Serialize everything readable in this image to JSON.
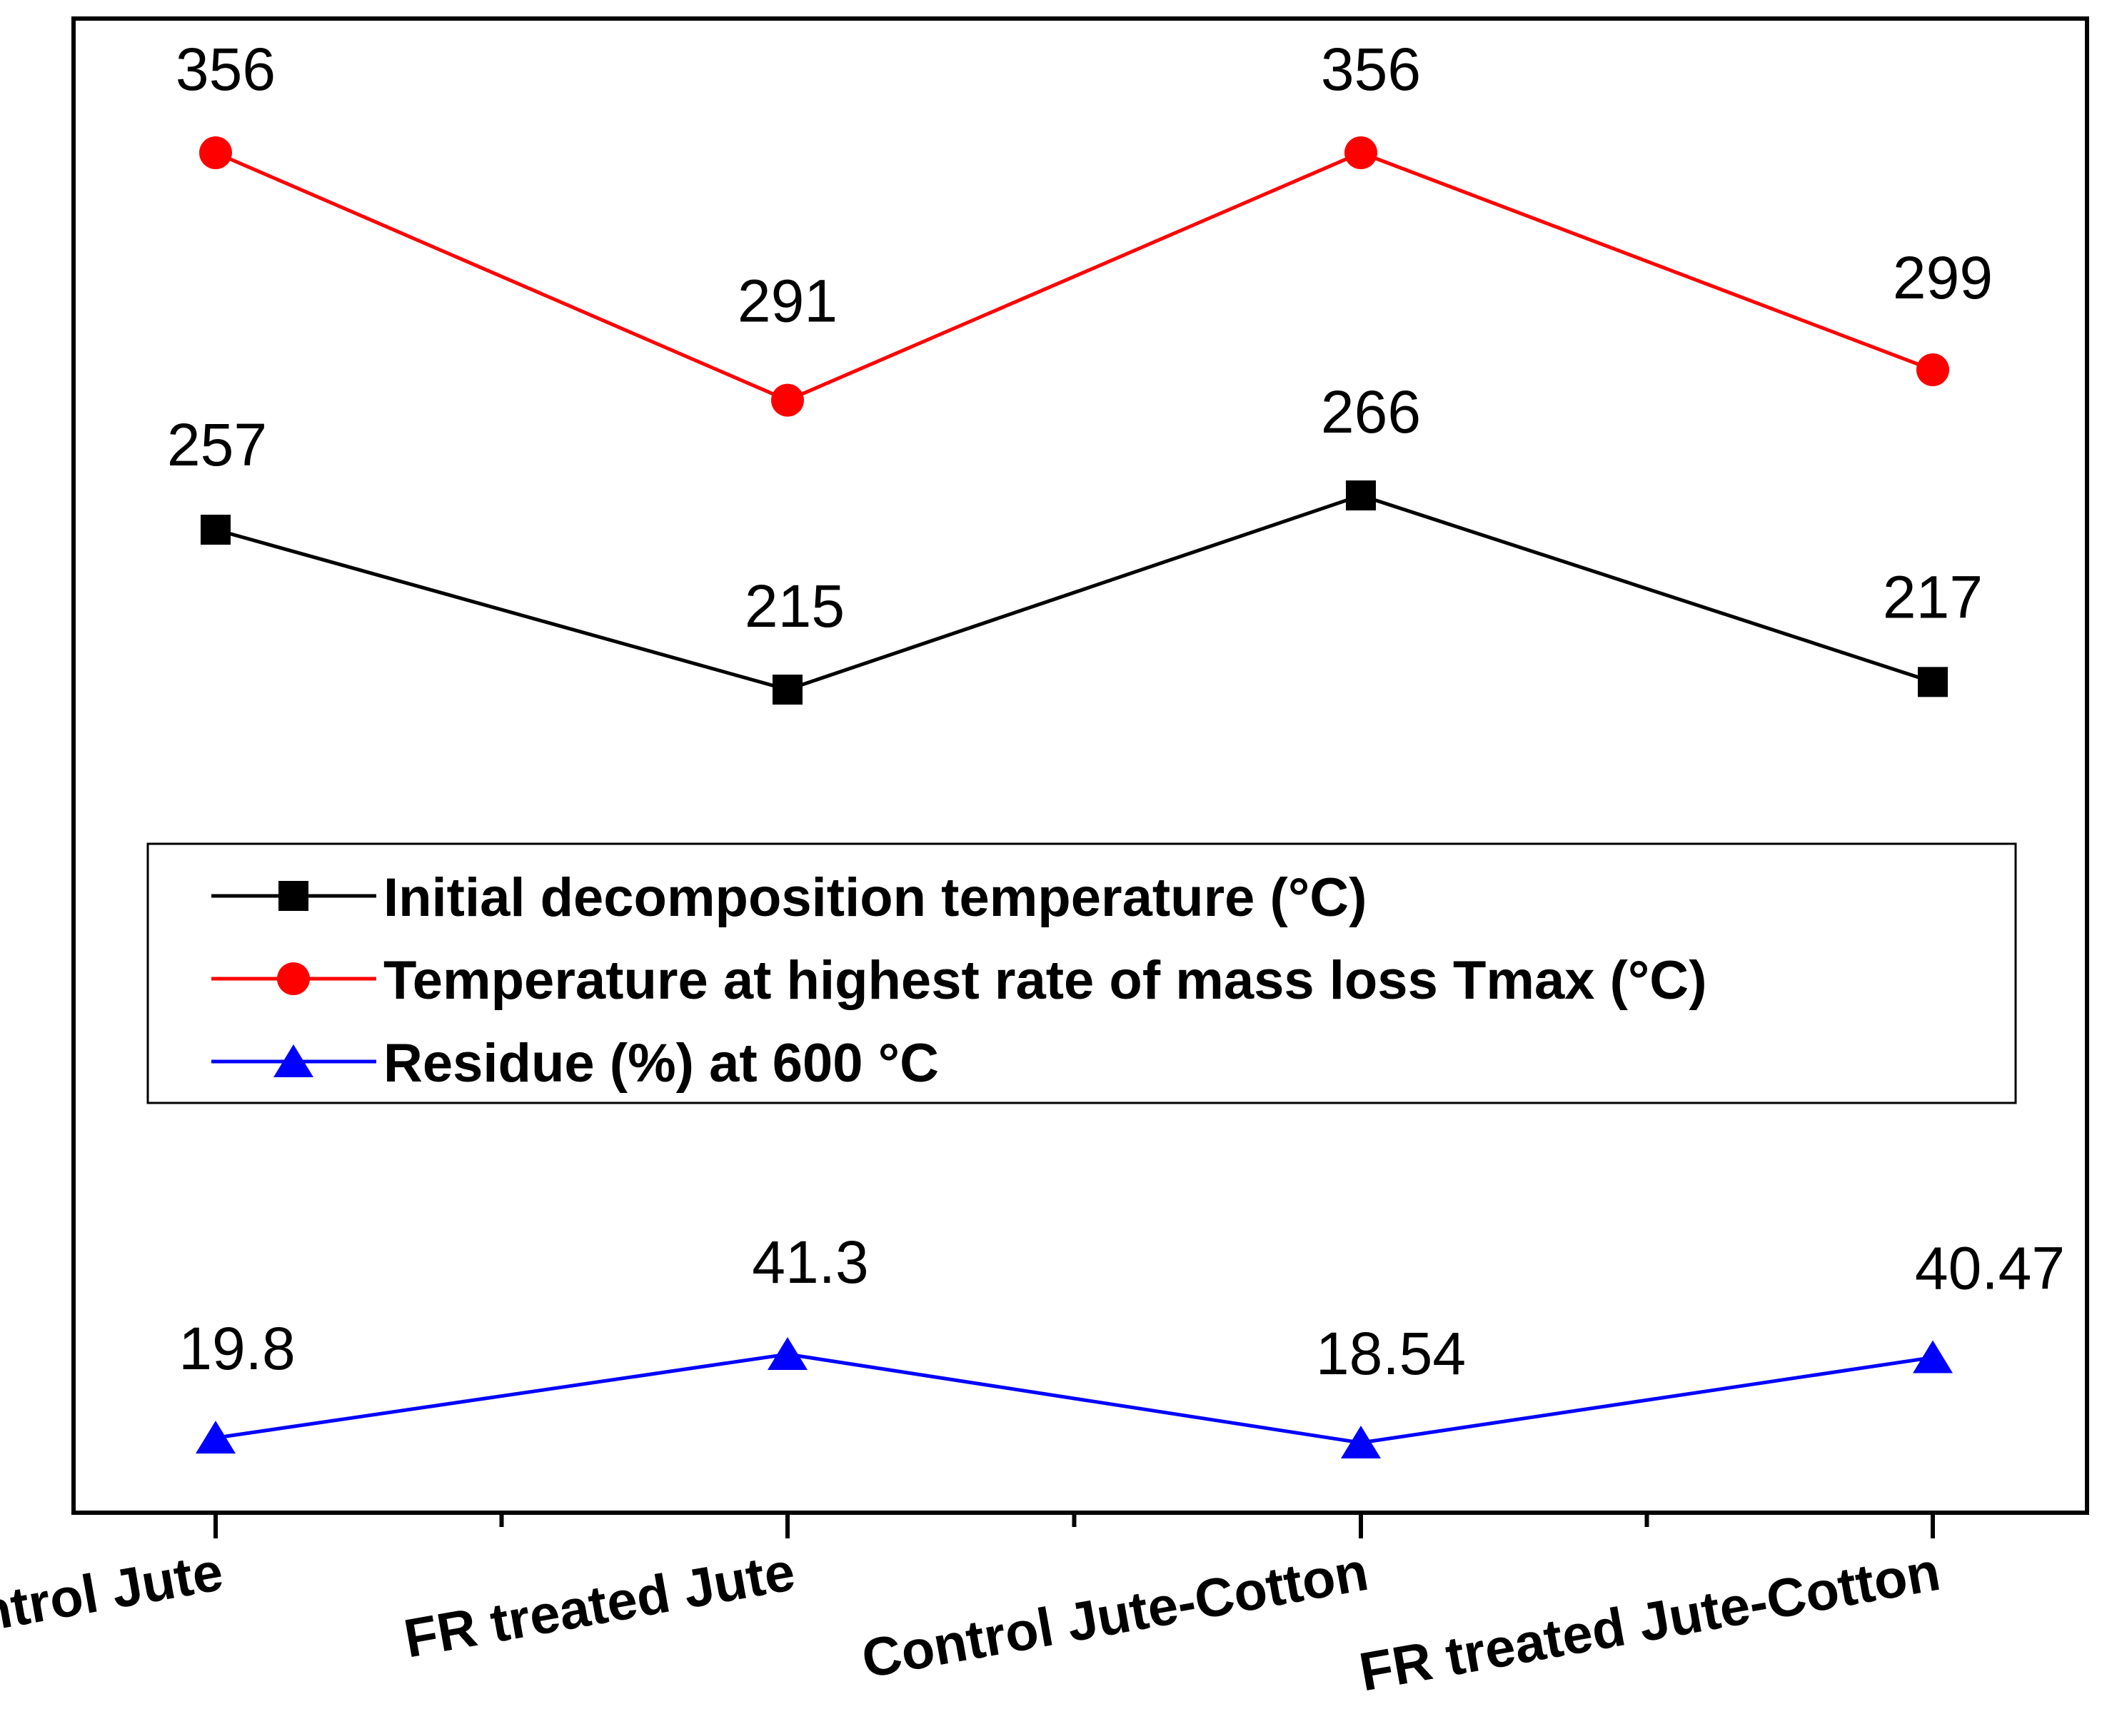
{
  "chart_data": {
    "type": "line",
    "title": "",
    "xlabel": "",
    "ylabel": "",
    "categories": [
      "Control Jute",
      "FR treated Jute",
      "Control Jute-Cotton",
      "FR treated Jute-Cotton"
    ],
    "series": [
      {
        "name": "Initial decomposition temperature (°C)",
        "marker": "square",
        "color": "#000000",
        "values": [
          257,
          215,
          266,
          217
        ],
        "labels": [
          "257",
          "215",
          "266",
          "217"
        ]
      },
      {
        "name": "Temperature at highest rate of mass loss Tmax (°C)",
        "marker": "circle",
        "color": "#ff0000",
        "values": [
          356,
          291,
          356,
          299
        ],
        "labels": [
          "356",
          "291",
          "356",
          "299"
        ]
      },
      {
        "name": "Residue (%) at 600 °C",
        "marker": "triangle",
        "color": "#0000ff",
        "values": [
          19.8,
          41.3,
          18.54,
          40.47
        ],
        "labels": [
          "19.8",
          "41.3",
          "18.54",
          "40.47"
        ]
      }
    ],
    "legend": {
      "placement": "middle",
      "entries": [
        "Initial decomposition temperature (°C)",
        "Temperature at highest rate of mass loss Tmax (°C)",
        "Residue (%) at 600 °C"
      ]
    },
    "grid": false,
    "y_axis_visible": false,
    "x_tick_rotation_deg": -10
  }
}
